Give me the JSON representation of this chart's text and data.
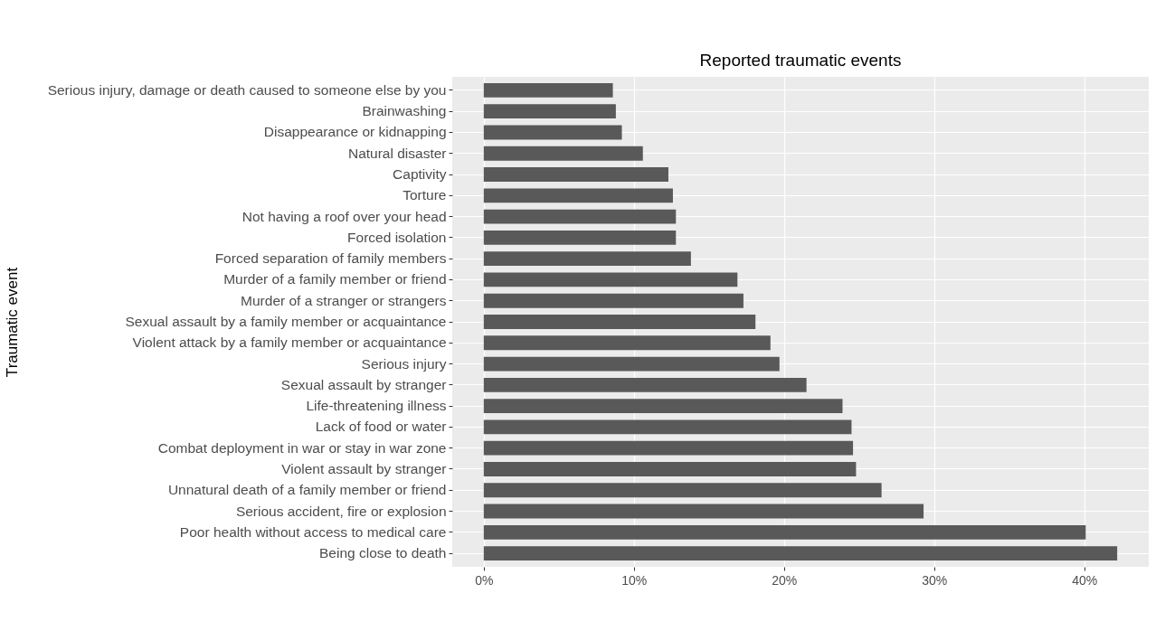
{
  "chart_data": {
    "type": "bar",
    "orientation": "horizontal",
    "title": "Reported traumatic events",
    "ylabel": "Traumatic event",
    "categories": [
      "Serious injury, damage or death caused to someone else by you",
      "Brainwashing",
      "Disappearance or kidnapping",
      "Natural disaster",
      "Captivity",
      "Torture",
      "Not having a roof over your head",
      "Forced isolation",
      "Forced separation of family members",
      "Murder of a family member or friend",
      "Murder of a stranger or strangers",
      "Sexual assault by a family member or acquaintance",
      "Violent attack by a family member or acquaintance",
      "Serious injury",
      "Sexual assault by stranger",
      "Life-threatening illness",
      "Lack of food or water",
      "Combat deployment in war or stay in war zone",
      "Violent assault by stranger",
      "Unnatural death of a family member or friend",
      "Serious accident, fire or explosion",
      "Poor health without access to medical care",
      "Being close to death"
    ],
    "values": [
      8.6,
      8.8,
      9.2,
      10.6,
      12.3,
      12.6,
      12.8,
      12.8,
      13.8,
      16.9,
      17.3,
      18.1,
      19.1,
      19.7,
      21.5,
      23.9,
      24.5,
      24.6,
      24.8,
      26.5,
      29.3,
      40.1,
      42.2
    ],
    "color": "#595959",
    "xlim": [
      -2.1,
      44.3
    ],
    "xticks": [
      {
        "value": 0,
        "label": "0%"
      },
      {
        "value": 10,
        "label": "10%"
      },
      {
        "value": 20,
        "label": "20%"
      },
      {
        "value": 30,
        "label": "30%"
      },
      {
        "value": 40,
        "label": "40%"
      }
    ],
    "grid": true
  }
}
